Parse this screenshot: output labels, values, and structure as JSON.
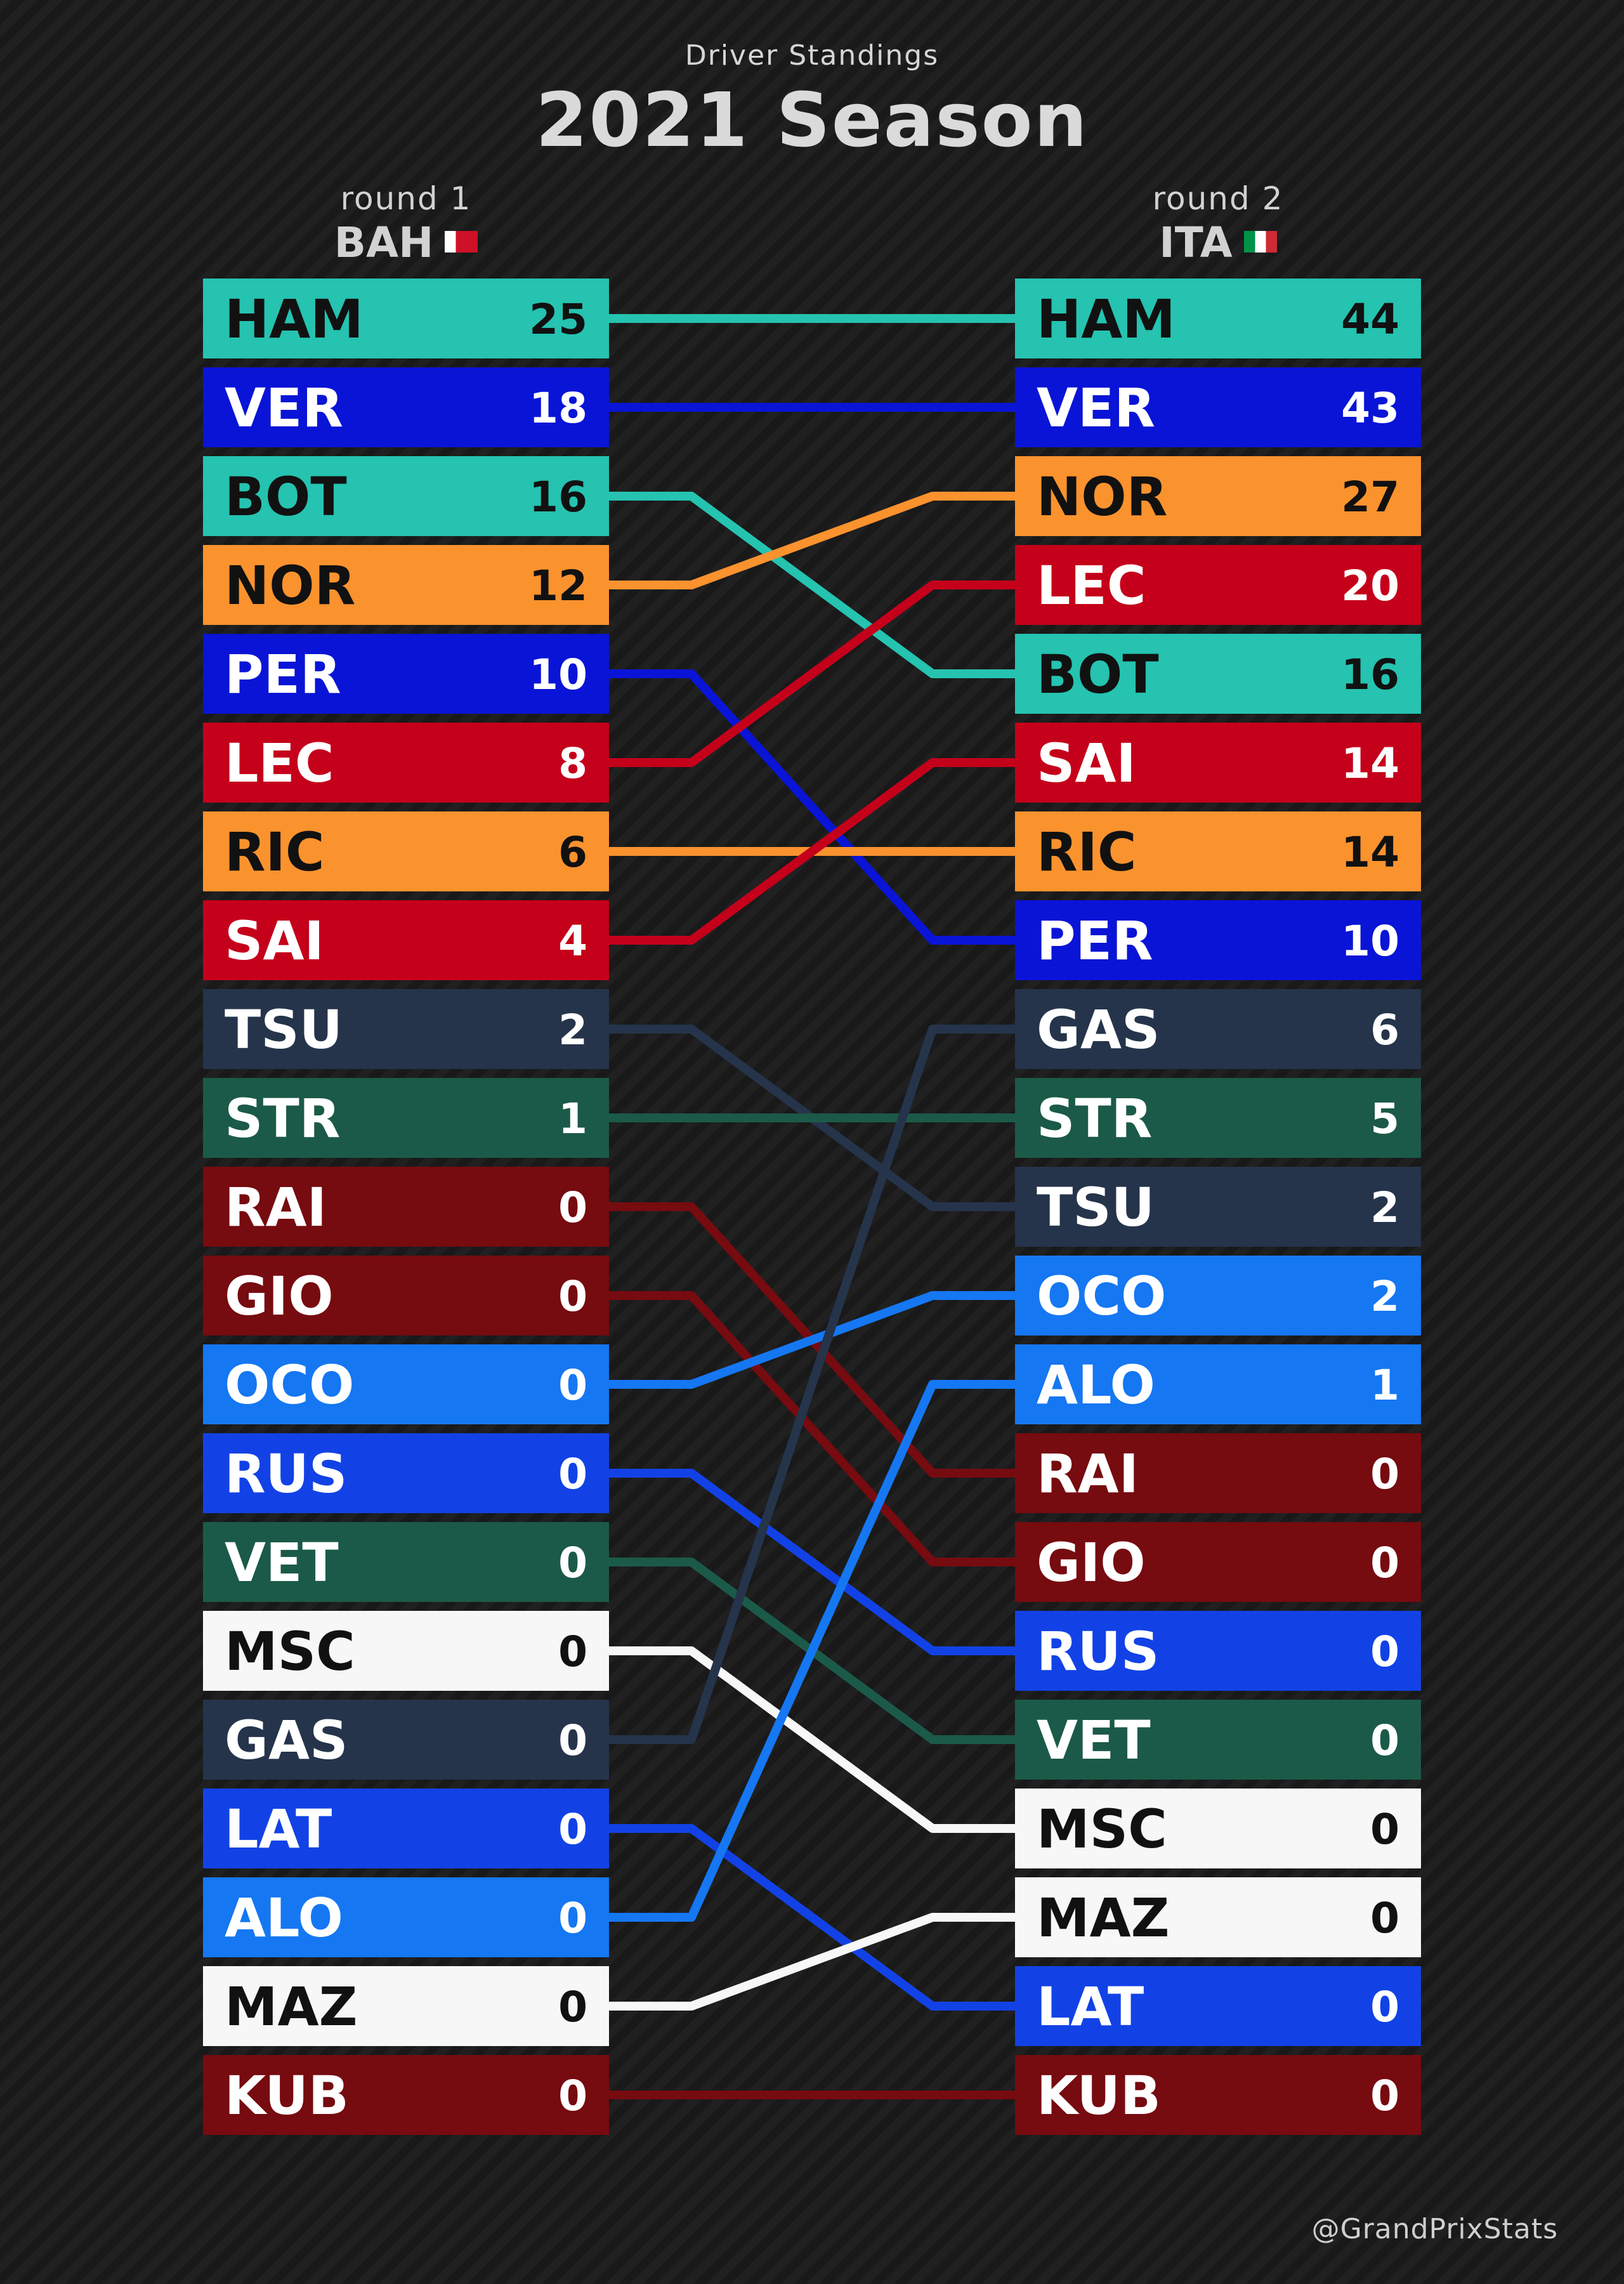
{
  "header": {
    "subtitle": "Driver Standings",
    "title": "2021 Season"
  },
  "rounds": [
    {
      "label": "round 1",
      "code": "BAH"
    },
    {
      "label": "round 2",
      "code": "ITA"
    }
  ],
  "colors": {
    "mercedes": "#25c3b0",
    "redbull": "#0a14d6",
    "mclaren": "#fa922e",
    "ferrari": "#c5001b",
    "alphatauri": "#25344b",
    "astonmartin": "#1b5a48",
    "alfaromeo": "#760b10",
    "alpine": "#1577f2",
    "williams": "#1242e6",
    "haas": "#f7f7f7",
    "dark_text": "#111111",
    "light_text": "#ffffff"
  },
  "chart_data": {
    "type": "table",
    "columns": [
      "round 1",
      "round 2"
    ],
    "drivers": [
      {
        "code": "HAM",
        "team": "mercedes"
      },
      {
        "code": "VER",
        "team": "redbull"
      },
      {
        "code": "BOT",
        "team": "mercedes"
      },
      {
        "code": "NOR",
        "team": "mclaren"
      },
      {
        "code": "PER",
        "team": "redbull"
      },
      {
        "code": "LEC",
        "team": "ferrari"
      },
      {
        "code": "RIC",
        "team": "mclaren"
      },
      {
        "code": "SAI",
        "team": "ferrari"
      },
      {
        "code": "TSU",
        "team": "alphatauri"
      },
      {
        "code": "STR",
        "team": "astonmartin"
      },
      {
        "code": "RAI",
        "team": "alfaromeo"
      },
      {
        "code": "GIO",
        "team": "alfaromeo"
      },
      {
        "code": "OCO",
        "team": "alpine"
      },
      {
        "code": "RUS",
        "team": "williams"
      },
      {
        "code": "VET",
        "team": "astonmartin"
      },
      {
        "code": "MSC",
        "team": "haas"
      },
      {
        "code": "GAS",
        "team": "alphatauri"
      },
      {
        "code": "LAT",
        "team": "williams"
      },
      {
        "code": "ALO",
        "team": "alpine"
      },
      {
        "code": "MAZ",
        "team": "haas"
      },
      {
        "code": "KUB",
        "team": "alfaromeo"
      }
    ],
    "standings": [
      [
        {
          "driver": "HAM",
          "points": 25
        },
        {
          "driver": "VER",
          "points": 18
        },
        {
          "driver": "BOT",
          "points": 16
        },
        {
          "driver": "NOR",
          "points": 12
        },
        {
          "driver": "PER",
          "points": 10
        },
        {
          "driver": "LEC",
          "points": 8
        },
        {
          "driver": "RIC",
          "points": 6
        },
        {
          "driver": "SAI",
          "points": 4
        },
        {
          "driver": "TSU",
          "points": 2
        },
        {
          "driver": "STR",
          "points": 1
        },
        {
          "driver": "RAI",
          "points": 0
        },
        {
          "driver": "GIO",
          "points": 0
        },
        {
          "driver": "OCO",
          "points": 0
        },
        {
          "driver": "RUS",
          "points": 0
        },
        {
          "driver": "VET",
          "points": 0
        },
        {
          "driver": "MSC",
          "points": 0
        },
        {
          "driver": "GAS",
          "points": 0
        },
        {
          "driver": "LAT",
          "points": 0
        },
        {
          "driver": "ALO",
          "points": 0
        },
        {
          "driver": "MAZ",
          "points": 0
        },
        {
          "driver": "KUB",
          "points": 0
        }
      ],
      [
        {
          "driver": "HAM",
          "points": 44
        },
        {
          "driver": "VER",
          "points": 43
        },
        {
          "driver": "NOR",
          "points": 27
        },
        {
          "driver": "LEC",
          "points": 20
        },
        {
          "driver": "BOT",
          "points": 16
        },
        {
          "driver": "SAI",
          "points": 14
        },
        {
          "driver": "RIC",
          "points": 14
        },
        {
          "driver": "PER",
          "points": 10
        },
        {
          "driver": "GAS",
          "points": 6
        },
        {
          "driver": "STR",
          "points": 5
        },
        {
          "driver": "TSU",
          "points": 2
        },
        {
          "driver": "OCO",
          "points": 2
        },
        {
          "driver": "ALO",
          "points": 1
        },
        {
          "driver": "RAI",
          "points": 0
        },
        {
          "driver": "GIO",
          "points": 0
        },
        {
          "driver": "RUS",
          "points": 0
        },
        {
          "driver": "VET",
          "points": 0
        },
        {
          "driver": "MSC",
          "points": 0
        },
        {
          "driver": "MAZ",
          "points": 0
        },
        {
          "driver": "LAT",
          "points": 0
        },
        {
          "driver": "KUB",
          "points": 0
        }
      ]
    ]
  },
  "credit": "@GrandPrixStats"
}
